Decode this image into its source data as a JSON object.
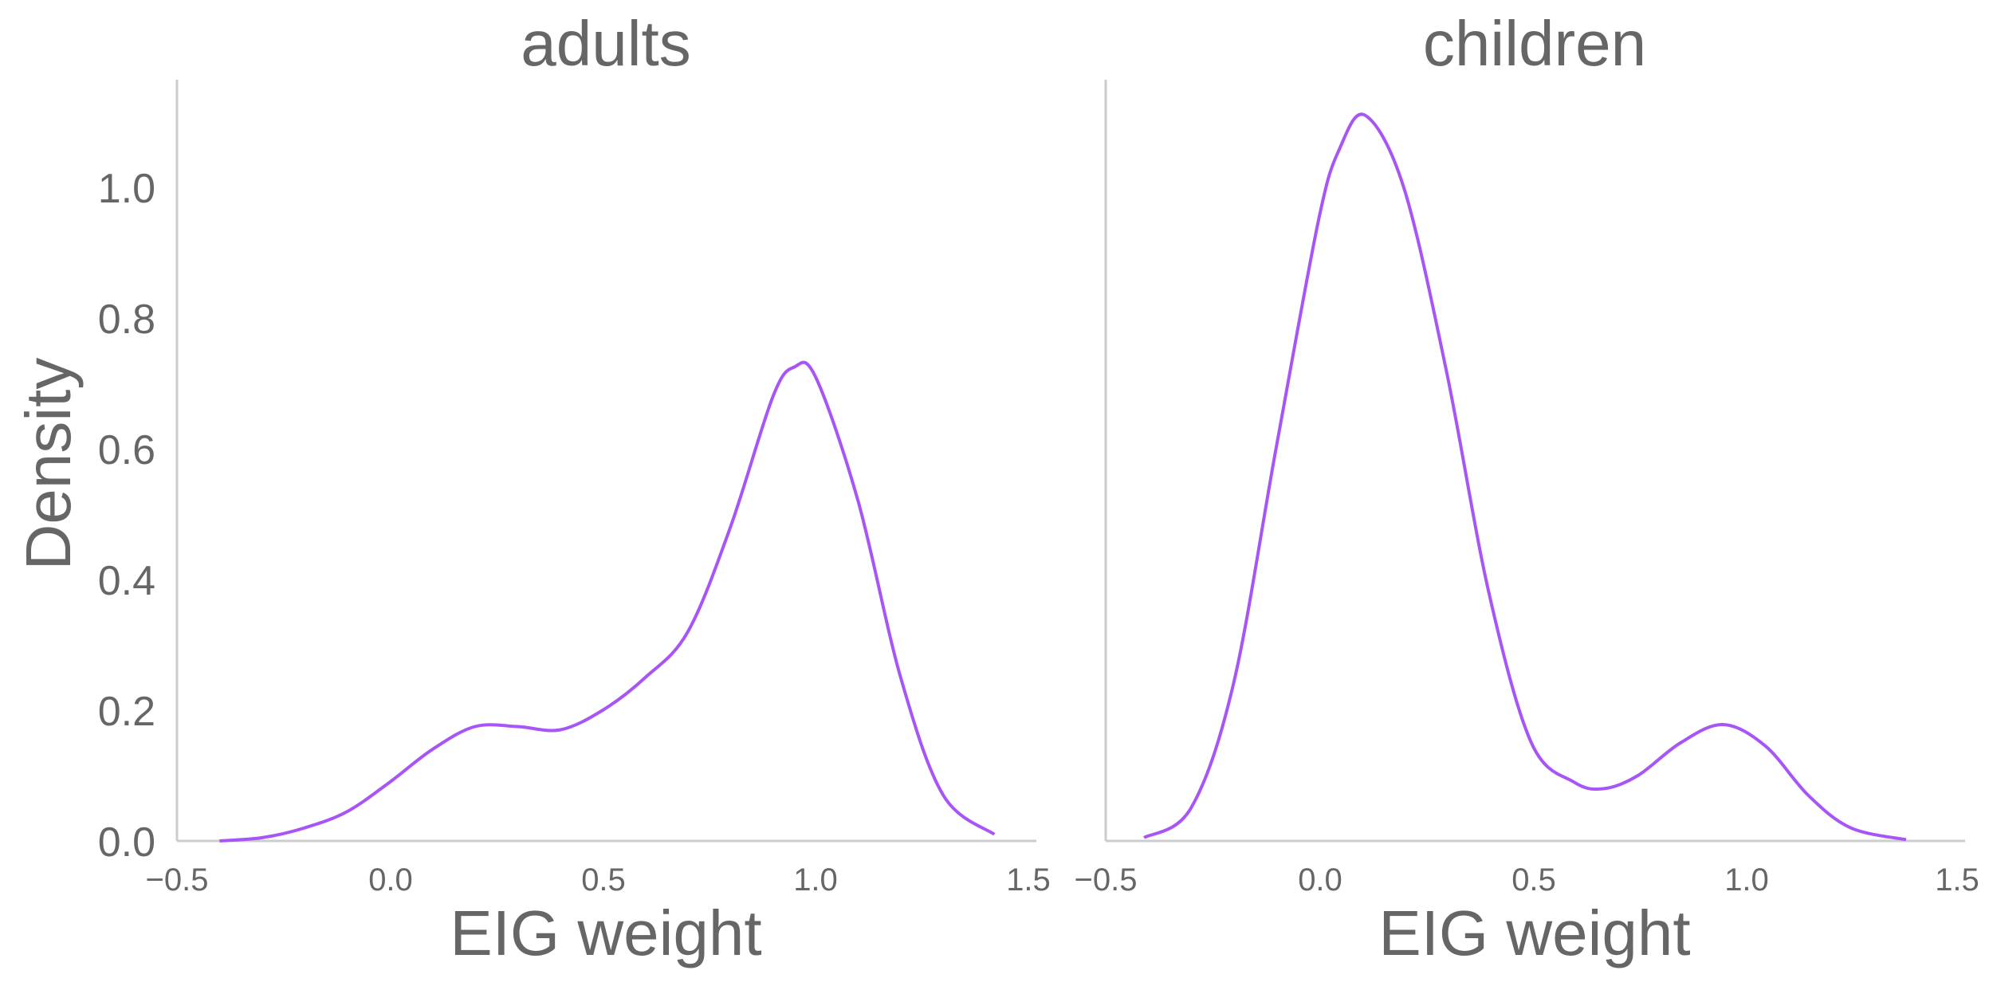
{
  "chart_data": {
    "type": "line",
    "ylabel": "Density",
    "ylim": [
      0,
      1.17
    ],
    "yticks": [
      "0.0",
      "0.2",
      "0.4",
      "0.6",
      "0.8",
      "1.0"
    ],
    "grid": false,
    "line_color": "#a855f7",
    "panels": [
      {
        "title": "adults",
        "xlabel": "EIG weight",
        "xlim": [
          -0.5,
          1.5
        ],
        "xticks": [
          "−0.5",
          "0.0",
          "0.5",
          "1.0",
          "1.5"
        ],
        "series": [
          {
            "x": [
              -0.4,
              -0.3,
              -0.2,
              -0.1,
              0.0,
              0.1,
              0.2,
              0.3,
              0.4,
              0.5,
              0.6,
              0.7,
              0.8,
              0.9,
              0.95,
              1.0,
              1.1,
              1.2,
              1.3,
              1.42
            ],
            "y": [
              0.0,
              0.005,
              0.02,
              0.045,
              0.09,
              0.14,
              0.175,
              0.175,
              0.17,
              0.2,
              0.25,
              0.32,
              0.48,
              0.68,
              0.725,
              0.71,
              0.52,
              0.25,
              0.07,
              0.01
            ]
          }
        ]
      },
      {
        "title": "children",
        "xlabel": "EIG weight",
        "xlim": [
          -0.5,
          1.5
        ],
        "xticks": [
          "−0.5",
          "0.0",
          "0.5",
          "1.0",
          "1.5"
        ],
        "series": [
          {
            "x": [
              -0.41,
              -0.3,
              -0.2,
              -0.1,
              0.0,
              0.05,
              0.11,
              0.2,
              0.3,
              0.4,
              0.5,
              0.6,
              0.67,
              0.75,
              0.85,
              0.95,
              1.05,
              1.15,
              1.25,
              1.38
            ],
            "y": [
              0.005,
              0.05,
              0.24,
              0.6,
              0.95,
              1.06,
              1.11,
              1.0,
              0.72,
              0.38,
              0.15,
              0.09,
              0.08,
              0.1,
              0.15,
              0.178,
              0.145,
              0.07,
              0.02,
              0.002
            ]
          }
        ]
      }
    ]
  }
}
